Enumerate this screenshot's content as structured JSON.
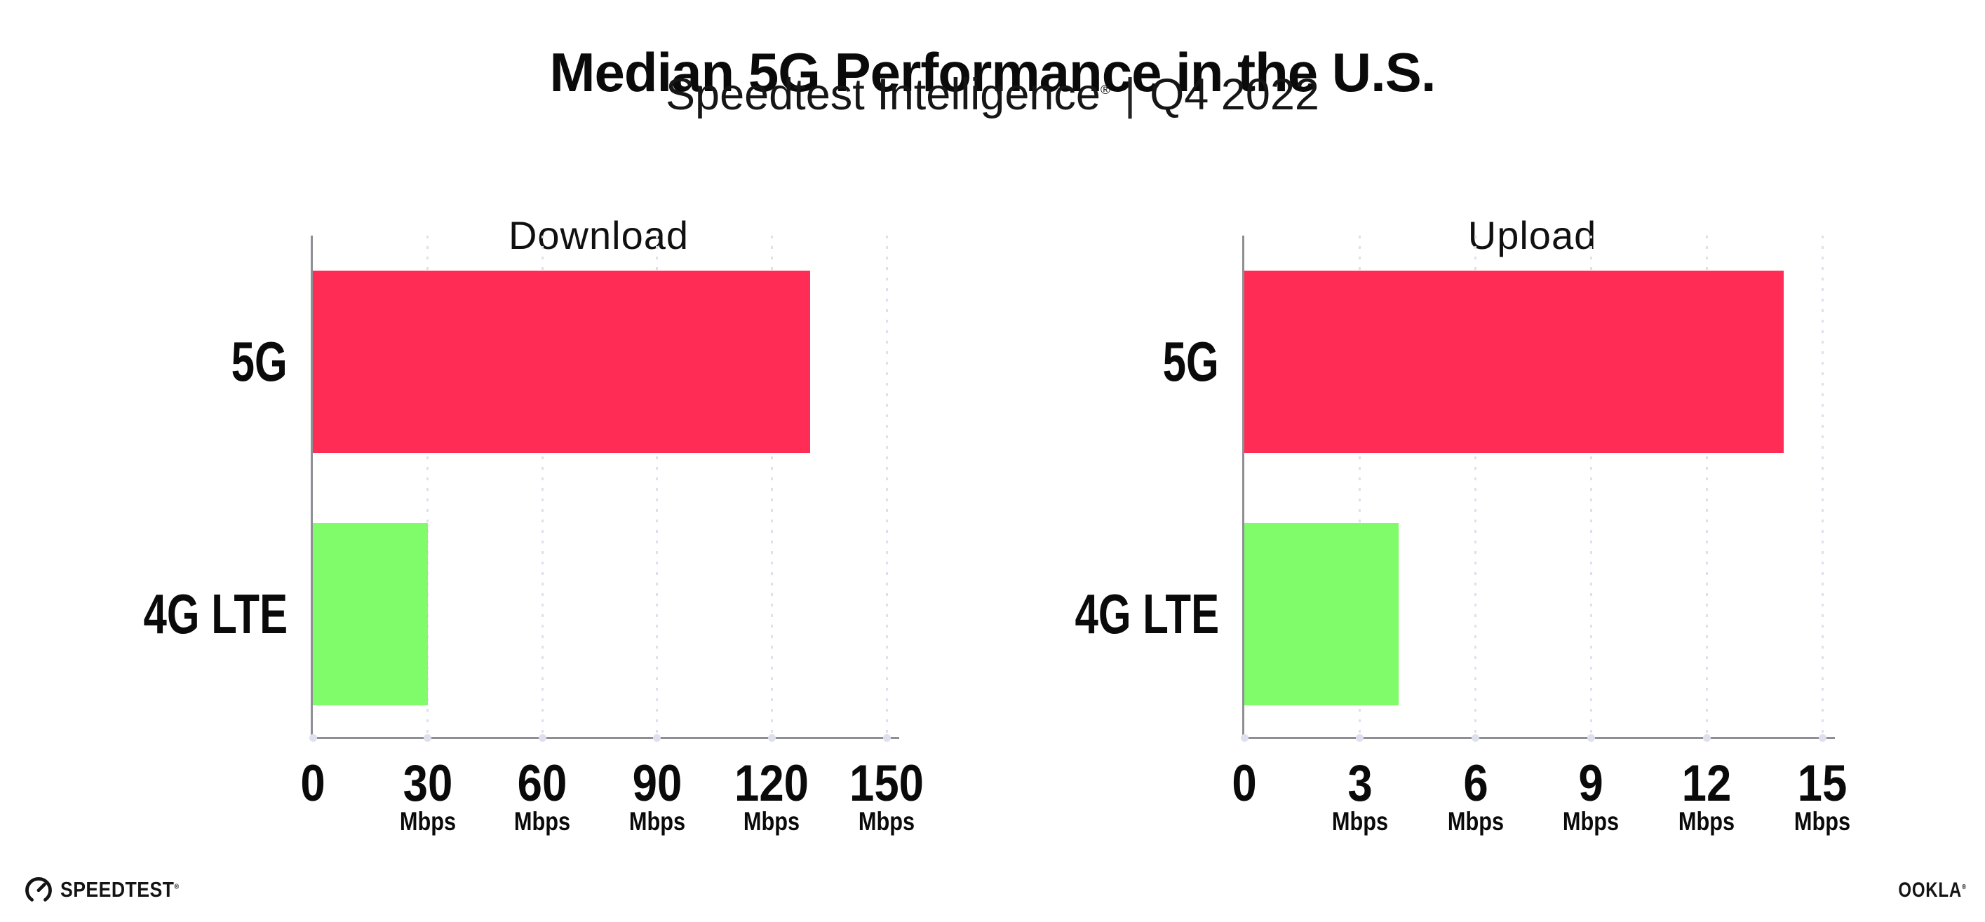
{
  "header": {
    "title": "Median 5G Performance in the U.S.",
    "subtitle": {
      "brand": "Speedtest Intelligence",
      "registered_mark": "®",
      "separator": "|",
      "period": "Q4 2022"
    }
  },
  "chart_data": [
    {
      "type": "bar",
      "orientation": "horizontal",
      "title": "Download",
      "categories": [
        "5G",
        "4G LTE"
      ],
      "values": [
        130,
        30
      ],
      "unit": "Mbps",
      "xlim": [
        0,
        150
      ],
      "xticks": [
        0,
        30,
        60,
        90,
        120,
        150
      ],
      "bar_colors": [
        "#FF2D55",
        "#80FB69"
      ],
      "grid": "dotted vertical gridlines at each tick",
      "legend": "none"
    },
    {
      "type": "bar",
      "orientation": "horizontal",
      "title": "Upload",
      "categories": [
        "5G",
        "4G LTE"
      ],
      "values": [
        14,
        4
      ],
      "unit": "Mbps",
      "xlim": [
        0,
        15
      ],
      "xticks": [
        0,
        3,
        6,
        9,
        12,
        15
      ],
      "bar_colors": [
        "#FF2D55",
        "#80FB69"
      ],
      "grid": "dotted vertical gridlines at each tick",
      "legend": "none"
    }
  ],
  "footer": {
    "speedtest_wordmark": "SPEEDTEST",
    "speedtest_registered_mark": "®",
    "ookla_wordmark": "OOKLA",
    "ookla_registered_mark": "®"
  },
  "colors": {
    "bar_5g": "#FF2D55",
    "bar_4g_lte": "#80FB69",
    "axis": "#8E8E94",
    "grid_dots": "#DFE0EE",
    "text": "#0F0F0F",
    "background": "#FFFFFF"
  }
}
